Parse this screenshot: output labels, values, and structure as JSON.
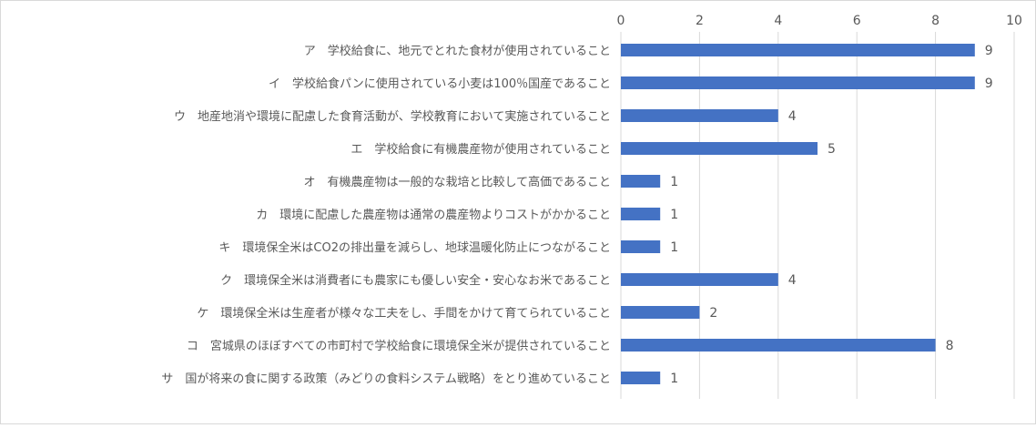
{
  "chart_data": {
    "type": "bar",
    "orientation": "horizontal",
    "categories": [
      "ア　学校給食に、地元でとれた食材が使用されていること",
      "イ　学校給食パンに使用されている小麦は100％国産であること",
      "ウ　地産地消や環境に配慮した食育活動が、学校教育において実施されていること",
      "エ　学校給食に有機農産物が使用されていること",
      "オ　有機農産物は一般的な栽培と比較して高価であること",
      "カ　環境に配慮した農産物は通常の農産物よりコストがかかること",
      "キ　環境保全米はCO2の排出量を減らし、地球温暖化防止につながること",
      "ク　環境保全米は消費者にも農家にも優しい安全・安心なお米であること",
      "ケ　環境保全米は生産者が様々な工夫をし、手間をかけて育てられていること",
      "コ　宮城県のほぼすべての市町村で学校給食に環境保全米が提供されていること",
      "サ　国が将来の食に関する政策（みどりの食料システム戦略）をとり進めていること"
    ],
    "values": [
      9,
      9,
      4,
      5,
      1,
      1,
      1,
      4,
      2,
      8,
      1
    ],
    "xlim": [
      0,
      10
    ],
    "ticks": [
      0,
      2,
      4,
      6,
      8,
      10
    ],
    "tick_labels": [
      "0",
      "2",
      "4",
      "6",
      "8",
      "10"
    ],
    "axis_position": "top",
    "grid": true,
    "data_labels": true,
    "bar_color": "#4472c4",
    "grid_color": "#d9d9d9",
    "text_color": "#595959"
  }
}
